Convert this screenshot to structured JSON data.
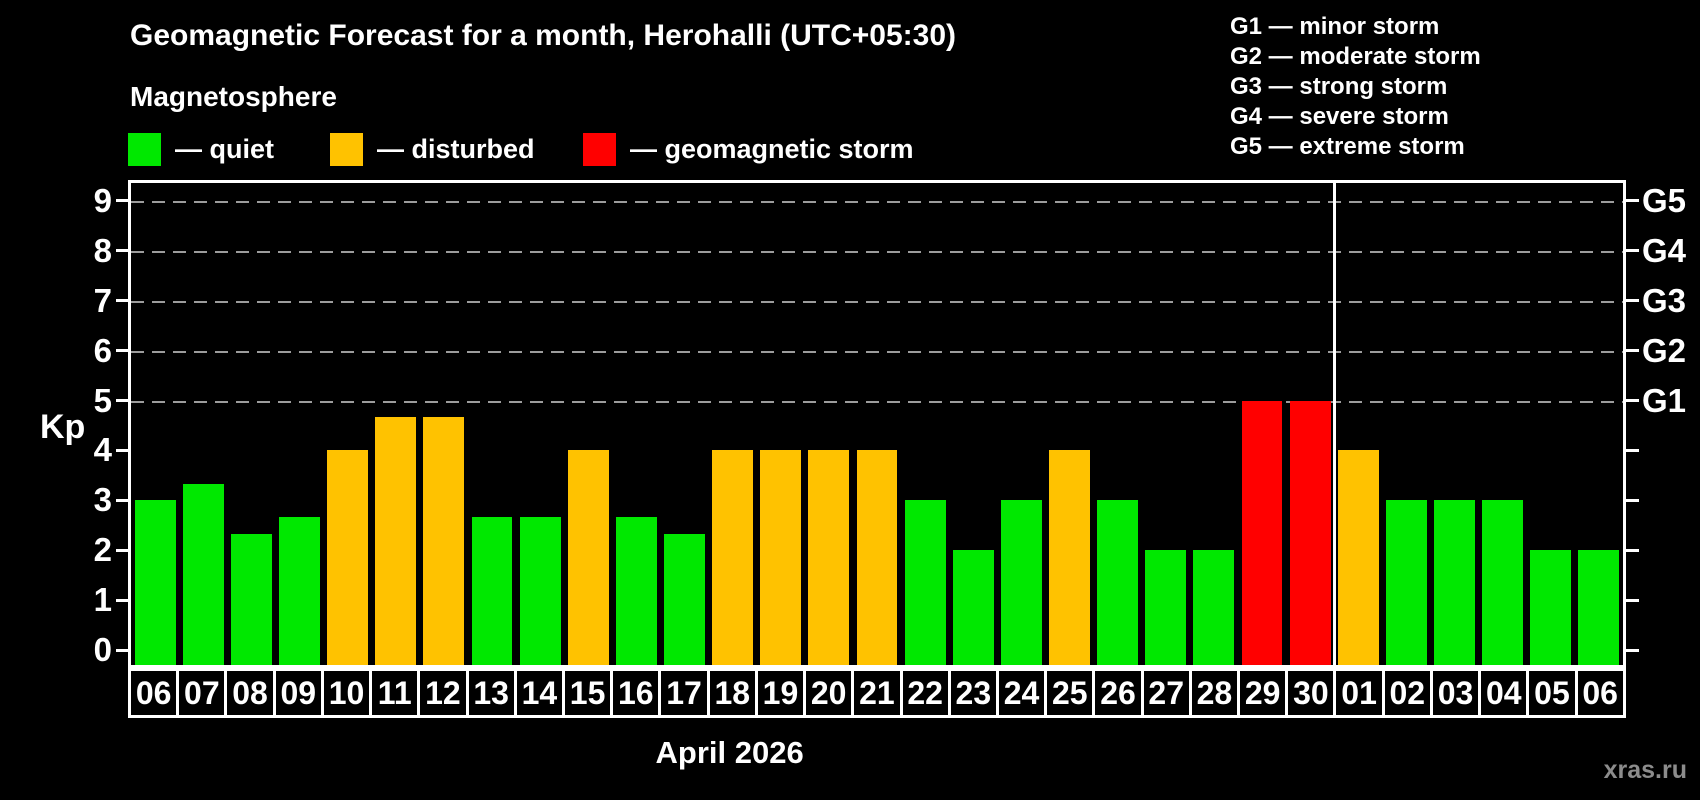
{
  "header": {
    "title": "Geomagnetic Forecast for a month, Herohalli (UTC+05:30)",
    "subtitle": "Magnetosphere"
  },
  "legend": {
    "items": [
      {
        "key": "quiet",
        "label": "— quiet",
        "color": "#00e800"
      },
      {
        "key": "disturbed",
        "label": "— disturbed",
        "color": "#ffc200"
      },
      {
        "key": "storm",
        "label": "— geomagnetic storm",
        "color": "#ff0000"
      }
    ]
  },
  "g_scale_legend": {
    "lines": [
      "G1 — minor storm",
      "G2 — moderate storm",
      "G3 — strong storm",
      "G4 — severe storm",
      "G5 — extreme storm"
    ]
  },
  "chart_data": {
    "type": "bar",
    "title": "Geomagnetic Forecast for a month, Herohalli (UTC+05:30)",
    "ylabel": "Kp",
    "xlabel": "April 2026",
    "ylim": [
      0,
      9.3
    ],
    "yticks": [
      0,
      1,
      2,
      3,
      4,
      5,
      6,
      7,
      8,
      9
    ],
    "gridlines": [
      5,
      6,
      7,
      8,
      9
    ],
    "grid_style": "dashed",
    "right_axis_labels": [
      {
        "value": 5,
        "label": "G1"
      },
      {
        "value": 6,
        "label": "G2"
      },
      {
        "value": 7,
        "label": "G3"
      },
      {
        "value": 8,
        "label": "G4"
      },
      {
        "value": 9,
        "label": "G5"
      }
    ],
    "categories": [
      "06",
      "07",
      "08",
      "09",
      "10",
      "11",
      "12",
      "13",
      "14",
      "15",
      "16",
      "17",
      "18",
      "19",
      "20",
      "21",
      "22",
      "23",
      "24",
      "25",
      "26",
      "27",
      "28",
      "29",
      "30",
      "01",
      "02",
      "03",
      "04",
      "05",
      "06"
    ],
    "values": [
      3.0,
      3.33,
      2.33,
      2.67,
      4.0,
      4.67,
      4.67,
      2.67,
      2.67,
      4.0,
      2.67,
      2.33,
      4.0,
      4.0,
      4.0,
      4.0,
      3.0,
      2.0,
      3.0,
      4.0,
      3.0,
      2.0,
      2.0,
      5.0,
      5.0,
      4.0,
      3.0,
      3.0,
      3.0,
      2.0,
      2.0
    ],
    "statuses": [
      "quiet",
      "quiet",
      "quiet",
      "quiet",
      "disturbed",
      "disturbed",
      "disturbed",
      "quiet",
      "quiet",
      "disturbed",
      "quiet",
      "quiet",
      "disturbed",
      "disturbed",
      "disturbed",
      "disturbed",
      "quiet",
      "quiet",
      "quiet",
      "disturbed",
      "quiet",
      "quiet",
      "quiet",
      "storm",
      "storm",
      "disturbed",
      "quiet",
      "quiet",
      "quiet",
      "quiet",
      "quiet"
    ],
    "month_separator_after_index": 24,
    "april_day_count": 25
  },
  "colors": {
    "quiet": "#00e800",
    "disturbed": "#ffc200",
    "storm": "#ff0000",
    "axis": "#ffffff",
    "grid": "#9c9c9c",
    "background": "#000000",
    "watermark": "#8c8c8c"
  },
  "watermark": "xras.ru"
}
